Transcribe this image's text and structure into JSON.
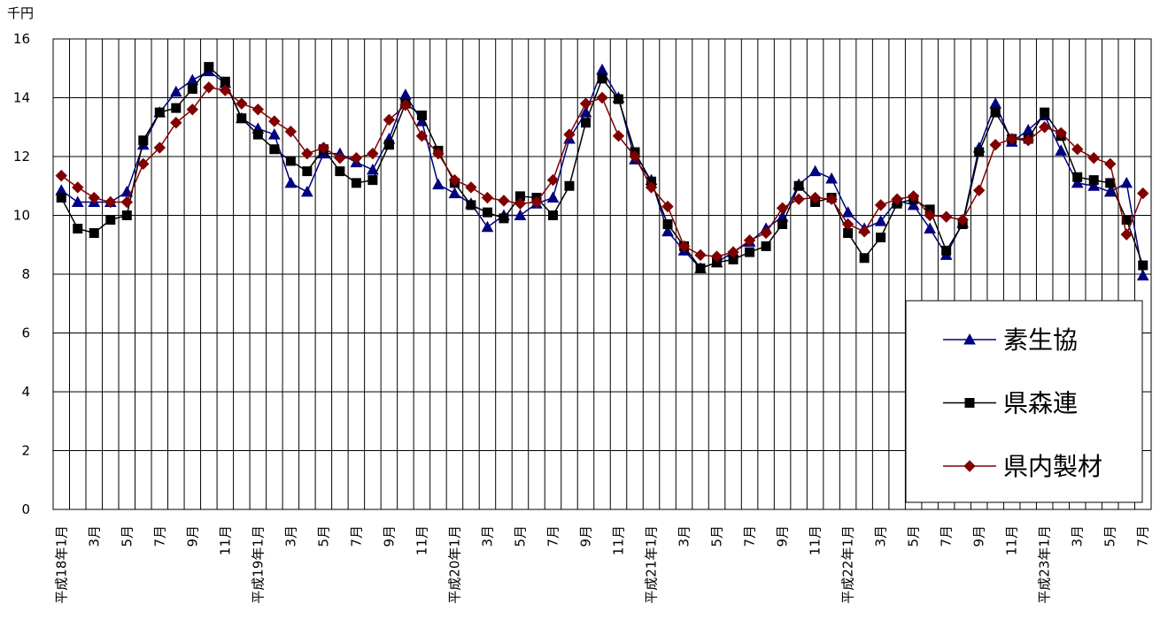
{
  "chart_data": {
    "type": "line",
    "y_label": "千円",
    "categories": [
      "平成18年1月",
      null,
      "3月",
      null,
      "5月",
      null,
      "7月",
      null,
      "9月",
      null,
      "11月",
      null,
      "平成19年1月",
      null,
      "3月",
      null,
      "5月",
      null,
      "7月",
      null,
      "9月",
      null,
      "11月",
      null,
      "平成20年1月",
      null,
      "3月",
      null,
      "5月",
      null,
      "7月",
      null,
      "9月",
      null,
      "11月",
      null,
      "平成21年1月",
      null,
      "3月",
      null,
      "5月",
      null,
      "7月",
      null,
      "9月",
      null,
      "11月",
      null,
      "平成22年1月",
      null,
      "3月",
      null,
      "5月",
      null,
      "7月",
      null,
      "9月",
      null,
      "11月",
      null,
      "平成23年1月",
      null,
      "3月",
      null,
      "5月",
      null,
      "7月"
    ],
    "series": [
      {
        "name": "素生協",
        "color": "#000080",
        "marker": "triangle",
        "values": [
          10.85,
          10.45,
          10.45,
          10.45,
          10.8,
          12.4,
          13.5,
          14.2,
          14.6,
          14.9,
          14.5,
          13.3,
          12.95,
          12.75,
          11.1,
          10.8,
          12.1,
          12.1,
          11.8,
          11.55,
          12.6,
          14.1,
          13.2,
          11.05,
          10.75,
          10.4,
          9.6,
          10.0,
          10.0,
          10.4,
          10.6,
          12.6,
          13.5,
          14.95,
          14.0,
          11.9,
          11.2,
          9.45,
          8.8,
          8.2,
          8.4,
          8.75,
          9.1,
          9.55,
          9.95,
          11.05,
          11.5,
          11.25,
          10.1,
          9.55,
          9.8,
          10.5,
          10.35,
          9.55,
          8.65,
          9.75,
          12.3,
          13.8,
          12.5,
          12.9,
          13.4,
          12.2,
          11.1,
          11.0,
          10.8,
          11.1,
          7.95
        ]
      },
      {
        "name": "県森連",
        "color": "#000000",
        "marker": "square",
        "values": [
          10.6,
          9.55,
          9.4,
          9.85,
          10.0,
          12.55,
          13.5,
          13.65,
          14.3,
          15.05,
          14.55,
          13.3,
          12.75,
          12.25,
          11.85,
          11.5,
          12.25,
          11.5,
          11.1,
          11.2,
          12.4,
          13.8,
          13.4,
          12.2,
          11.1,
          10.35,
          10.1,
          9.9,
          10.65,
          10.6,
          10.0,
          11.0,
          13.15,
          14.65,
          13.95,
          12.15,
          11.15,
          9.7,
          8.95,
          8.2,
          8.4,
          8.5,
          8.75,
          8.95,
          9.7,
          11.0,
          10.45,
          10.6,
          9.4,
          8.55,
          9.25,
          10.4,
          10.55,
          10.2,
          8.8,
          9.7,
          12.15,
          13.5,
          12.6,
          12.6,
          13.5,
          12.7,
          11.3,
          11.2,
          11.1,
          9.85,
          8.3
        ]
      },
      {
        "name": "県内製材",
        "color": "#800000",
        "marker": "diamond",
        "values": [
          11.35,
          10.95,
          10.6,
          10.45,
          10.45,
          11.75,
          12.3,
          13.15,
          13.6,
          14.35,
          14.25,
          13.8,
          13.6,
          13.2,
          12.85,
          12.1,
          12.3,
          11.95,
          11.95,
          12.1,
          13.25,
          13.75,
          12.7,
          12.1,
          11.2,
          10.95,
          10.6,
          10.5,
          10.4,
          10.45,
          11.2,
          12.75,
          13.8,
          14.0,
          12.7,
          12.0,
          10.95,
          10.3,
          8.95,
          8.65,
          8.6,
          8.75,
          9.15,
          9.4,
          10.25,
          10.55,
          10.6,
          10.55,
          9.7,
          9.45,
          10.35,
          10.55,
          10.65,
          10.0,
          9.95,
          9.85,
          10.85,
          12.4,
          12.6,
          12.55,
          13.0,
          12.8,
          12.25,
          11.95,
          11.75,
          9.35,
          10.75
        ]
      }
    ],
    "ylim": [
      0,
      16
    ],
    "yticks": [
      0,
      2,
      4,
      6,
      8,
      10,
      12,
      14,
      16
    ],
    "grid": true
  }
}
